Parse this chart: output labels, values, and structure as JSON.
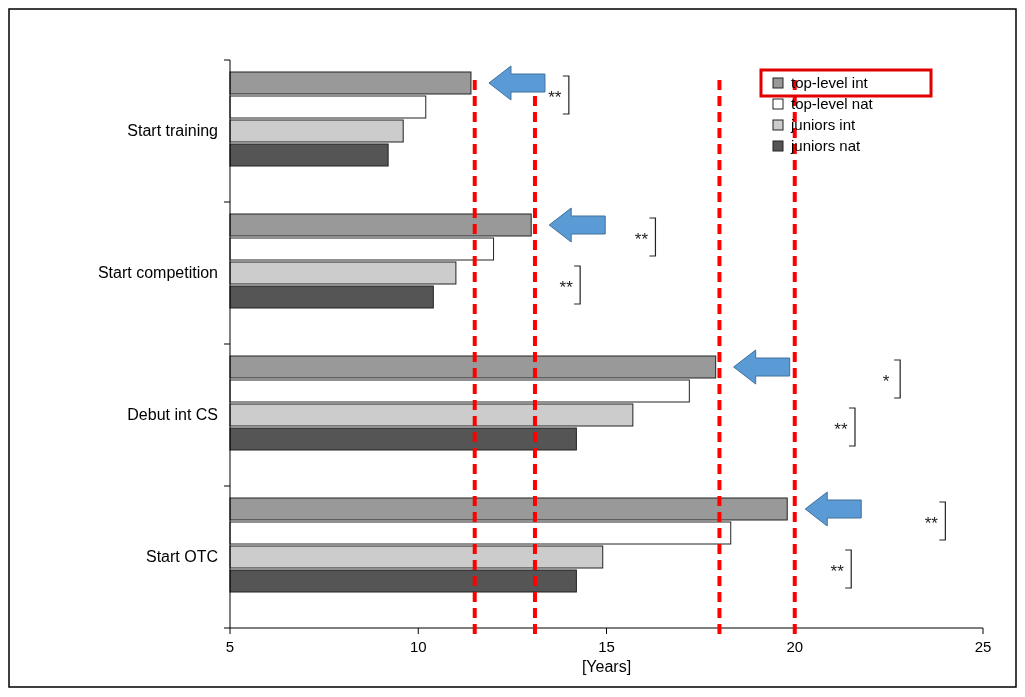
{
  "chart_data": {
    "type": "bar",
    "orientation": "horizontal",
    "xlabel": "[Years]",
    "categories": [
      "Start training",
      "Start competition",
      "Debut int CS",
      "Start OTC"
    ],
    "series": [
      {
        "name": "top-level int",
        "color": "#999999",
        "values": [
          11.4,
          13.0,
          17.9,
          19.8
        ]
      },
      {
        "name": "top-level nat",
        "color": "#ffffff",
        "values": [
          10.2,
          12.0,
          17.2,
          18.3
        ]
      },
      {
        "name": "juniors int",
        "color": "#cccccc",
        "values": [
          9.6,
          11.0,
          15.7,
          14.9
        ]
      },
      {
        "name": "juniors nat",
        "color": "#555555",
        "values": [
          9.2,
          10.4,
          14.2,
          14.2
        ]
      }
    ],
    "xlim": [
      5,
      25
    ],
    "xticks": [
      5,
      10,
      15,
      20,
      25
    ],
    "legend": "top right",
    "ref_lines": [
      {
        "axis": "x",
        "value": 11.5,
        "color": "#ff0000",
        "line_style": "dashed"
      },
      {
        "axis": "x",
        "value": 13.1,
        "color": "#ff0000",
        "line_style": "dashed"
      },
      {
        "axis": "x",
        "value": 18.0,
        "color": "#ff0000",
        "line_style": "dashed"
      },
      {
        "axis": "x",
        "value": 20.0,
        "color": "#ff0000",
        "line_style": "dashed"
      }
    ],
    "annotations": [
      "**",
      "**",
      "**",
      "*",
      "**",
      "**",
      "**"
    ]
  }
}
